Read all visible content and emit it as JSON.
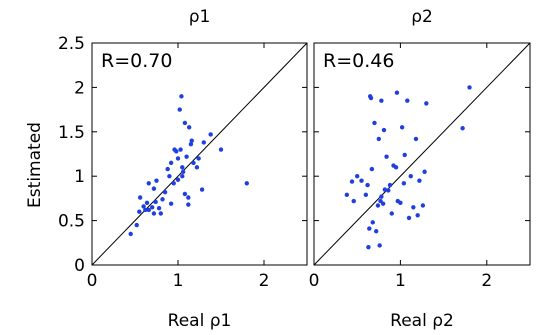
{
  "colors": {
    "points": "#1f3fe0",
    "axes": "#000000",
    "background": "#ffffff"
  },
  "shared_ylabel": "Estimated",
  "chart_data": [
    {
      "type": "scatter",
      "title": "ρ1",
      "xlabel": "Real ρ1",
      "ylabel": "Estimated",
      "annotation": "R=0.70",
      "xlim": [
        0,
        2.5
      ],
      "ylim": [
        0,
        2.5
      ],
      "xticks": [
        0,
        1,
        2
      ],
      "xtick_labels": [
        "0",
        "1",
        "2"
      ],
      "yticks": [
        0,
        0.5,
        1,
        1.5,
        2,
        2.5
      ],
      "ytick_labels": [
        "0",
        "0.5",
        "1",
        "1.5",
        "2",
        "2.5"
      ],
      "reference_line": "y = x",
      "grid": false,
      "points": [
        [
          0.45,
          0.35
        ],
        [
          0.52,
          0.45
        ],
        [
          0.55,
          0.6
        ],
        [
          0.56,
          0.76
        ],
        [
          0.6,
          0.66
        ],
        [
          0.62,
          0.62
        ],
        [
          0.64,
          0.7
        ],
        [
          0.66,
          0.62
        ],
        [
          0.66,
          0.92
        ],
        [
          0.7,
          0.65
        ],
        [
          0.72,
          0.58
        ],
        [
          0.72,
          0.86
        ],
        [
          0.74,
          0.71
        ],
        [
          0.75,
          0.95
        ],
        [
          0.78,
          0.64
        ],
        [
          0.8,
          0.58
        ],
        [
          0.82,
          0.74
        ],
        [
          0.85,
          0.82
        ],
        [
          0.88,
          1.08
        ],
        [
          0.9,
          1.0
        ],
        [
          0.92,
          0.69
        ],
        [
          0.92,
          1.15
        ],
        [
          0.95,
          0.92
        ],
        [
          0.96,
          1.3
        ],
        [
          0.98,
          1.28
        ],
        [
          1.0,
          1.2
        ],
        [
          1.0,
          0.96
        ],
        [
          1.02,
          1.75
        ],
        [
          1.03,
          1.3
        ],
        [
          1.04,
          1.9
        ],
        [
          1.05,
          1.0
        ],
        [
          1.05,
          1.1
        ],
        [
          1.06,
          1.05
        ],
        [
          1.08,
          0.8
        ],
        [
          1.08,
          1.6
        ],
        [
          1.1,
          1.22
        ],
        [
          1.12,
          0.76
        ],
        [
          1.12,
          0.68
        ],
        [
          1.13,
          1.55
        ],
        [
          1.15,
          1.36
        ],
        [
          1.16,
          1.4
        ],
        [
          1.18,
          1.15
        ],
        [
          1.22,
          1.1
        ],
        [
          1.24,
          1.2
        ],
        [
          1.28,
          0.85
        ],
        [
          1.3,
          1.38
        ],
        [
          1.38,
          1.47
        ],
        [
          1.5,
          1.3
        ],
        [
          1.8,
          0.92
        ]
      ]
    },
    {
      "type": "scatter",
      "title": "ρ2",
      "xlabel": "Real ρ2",
      "ylabel": "",
      "annotation": "R=0.46",
      "xlim": [
        0,
        2.5
      ],
      "ylim": [
        0,
        2.5
      ],
      "xticks": [
        0,
        1,
        2
      ],
      "xtick_labels": [
        "0",
        "1",
        "2"
      ],
      "yticks": [
        0,
        0.5,
        1,
        1.5,
        2,
        2.5
      ],
      "ytick_labels": [],
      "reference_line": "y = x",
      "grid": false,
      "points": [
        [
          0.38,
          0.79
        ],
        [
          0.44,
          0.94
        ],
        [
          0.46,
          0.72
        ],
        [
          0.5,
          1.0
        ],
        [
          0.55,
          0.95
        ],
        [
          0.6,
          0.79
        ],
        [
          0.62,
          0.9
        ],
        [
          0.63,
          0.2
        ],
        [
          0.64,
          0.41
        ],
        [
          0.65,
          1.9
        ],
        [
          0.66,
          1.88
        ],
        [
          0.67,
          1.08
        ],
        [
          0.68,
          0.48
        ],
        [
          0.7,
          1.6
        ],
        [
          0.72,
          0.38
        ],
        [
          0.74,
          0.67
        ],
        [
          0.75,
          1.42
        ],
        [
          0.76,
          0.22
        ],
        [
          0.77,
          0.72
        ],
        [
          0.78,
          0.77
        ],
        [
          0.78,
          1.85
        ],
        [
          0.8,
          0.69
        ],
        [
          0.81,
          1.52
        ],
        [
          0.82,
          0.85
        ],
        [
          0.84,
          1.22
        ],
        [
          0.86,
          0.84
        ],
        [
          0.88,
          0.9
        ],
        [
          0.9,
          0.58
        ],
        [
          0.92,
          1.12
        ],
        [
          0.95,
          1.1
        ],
        [
          0.96,
          1.94
        ],
        [
          0.97,
          0.72
        ],
        [
          1.0,
          0.7
        ],
        [
          1.02,
          1.55
        ],
        [
          1.04,
          0.92
        ],
        [
          1.05,
          1.24
        ],
        [
          1.08,
          1.85
        ],
        [
          1.1,
          0.53
        ],
        [
          1.12,
          1.0
        ],
        [
          1.15,
          0.65
        ],
        [
          1.18,
          1.42
        ],
        [
          1.2,
          0.56
        ],
        [
          1.22,
          0.95
        ],
        [
          1.26,
          0.67
        ],
        [
          1.28,
          1.05
        ],
        [
          1.3,
          1.82
        ],
        [
          1.72,
          1.54
        ],
        [
          1.8,
          2.0
        ]
      ]
    }
  ]
}
